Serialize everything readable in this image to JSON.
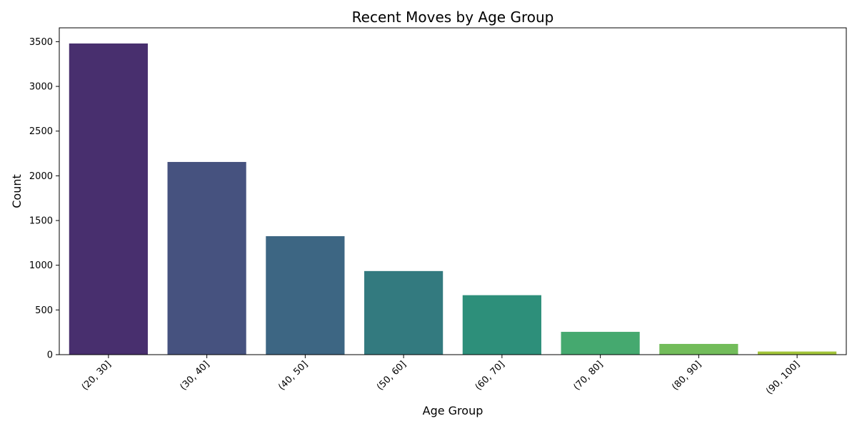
{
  "chart_data": {
    "type": "bar",
    "title": "Recent Moves by Age Group",
    "xlabel": "Age Group",
    "ylabel": "Count",
    "categories": [
      "(20, 30]",
      "(30, 40]",
      "(40, 50]",
      "(50, 60]",
      "(60, 70]",
      "(70, 80]",
      "(80, 90]",
      "(90, 100]"
    ],
    "values": [
      3480,
      2155,
      1325,
      935,
      665,
      255,
      120,
      35
    ],
    "colors": [
      "#482f6e",
      "#46527f",
      "#3d6683",
      "#337a7f",
      "#2d8f7a",
      "#45a96f",
      "#72bc5a",
      "#a2c43a"
    ],
    "ylim": [
      0,
      3655
    ],
    "yticks": [
      0,
      500,
      1000,
      1500,
      2000,
      2500,
      3000,
      3500
    ],
    "grid": false,
    "legend": "none"
  }
}
